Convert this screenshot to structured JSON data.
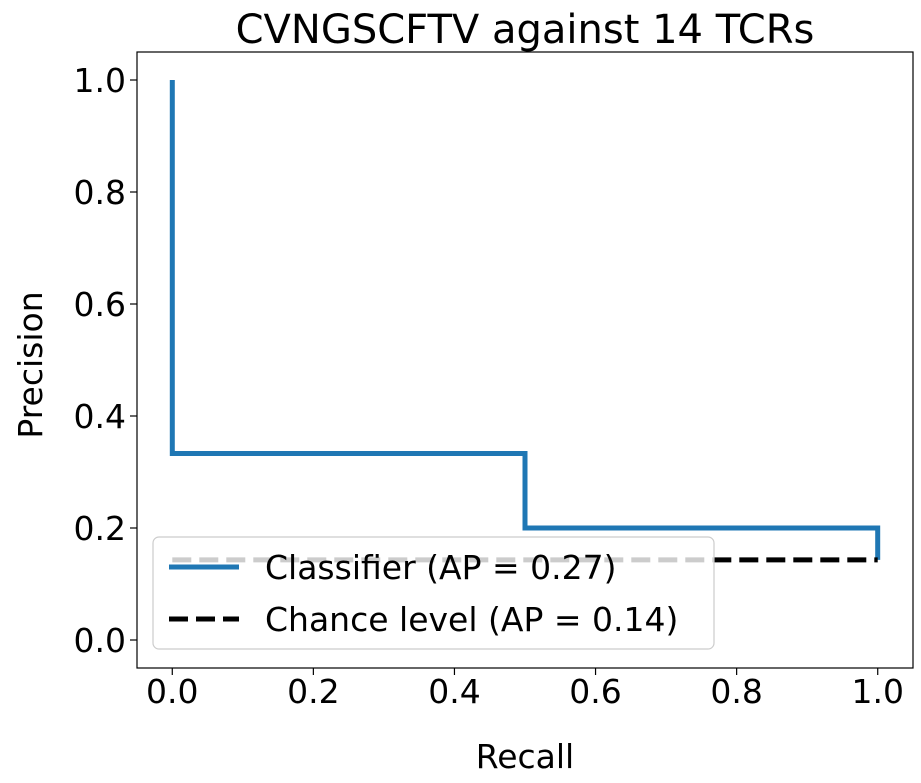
{
  "chart_data": {
    "type": "line",
    "title": "CVNGSCFTV against 14 TCRs",
    "xlabel": "Recall",
    "ylabel": "Precision",
    "xlim": [
      -0.05,
      1.05
    ],
    "ylim": [
      -0.05,
      1.05
    ],
    "xticks": [
      "0.0",
      "0.2",
      "0.4",
      "0.6",
      "0.8",
      "1.0"
    ],
    "yticks": [
      "0.0",
      "0.2",
      "0.4",
      "0.6",
      "0.8",
      "1.0"
    ],
    "grid": false,
    "legend_position": "lower-left",
    "series": [
      {
        "name": "Classifier (AP = 0.27)",
        "color": "#1f77b4",
        "style": "solid",
        "step": true,
        "x": [
          0.0,
          0.0,
          0.0,
          0.5,
          0.5,
          1.0,
          1.0
        ],
        "y": [
          1.0,
          0.333,
          0.333,
          0.333,
          0.2,
          0.2,
          0.143
        ]
      },
      {
        "name": "Chance level (AP = 0.14)",
        "color": "#000000",
        "style": "dashed",
        "x": [
          0.0,
          1.0
        ],
        "y": [
          0.143,
          0.143
        ]
      }
    ]
  }
}
